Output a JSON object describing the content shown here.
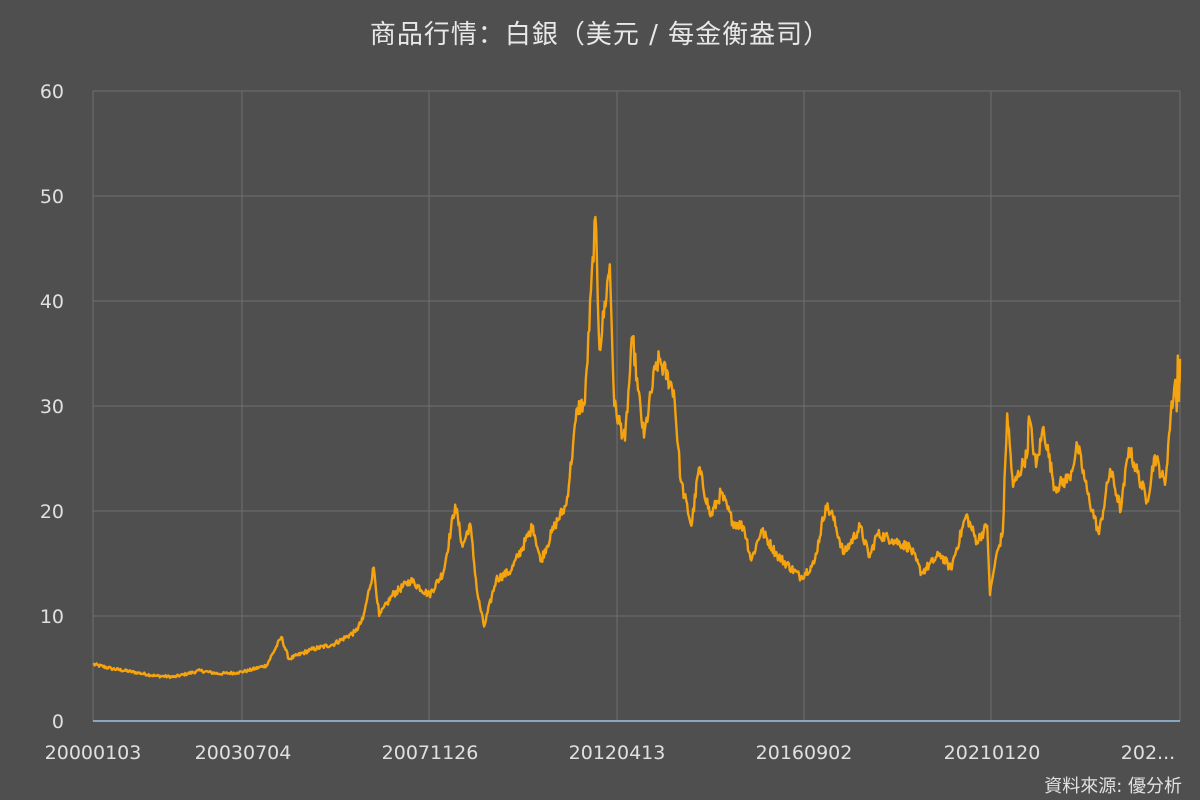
{
  "chart_data": {
    "type": "line",
    "title": "商品行情：白銀（美元 / 每金衡盎司）",
    "source": "資料來源: 優分析",
    "xlabel": "",
    "ylabel": "",
    "ylim": [
      0,
      60
    ],
    "yticks": [
      "0",
      "10",
      "20",
      "30",
      "40",
      "50",
      "60"
    ],
    "xtick_labels": [
      "20000103",
      "20030704",
      "20071126",
      "20120413",
      "20160902",
      "20210120",
      "202..."
    ],
    "grid": true,
    "legend": "none",
    "line_color": "#f5a30f",
    "axis_color": "#9cc3e6",
    "x_domain": [
      "2000-01-03",
      "2024-06-28"
    ],
    "points": [
      [
        "2000-01-03",
        5.4
      ],
      [
        "2000-06-01",
        5.0
      ],
      [
        "2001-01-02",
        4.6
      ],
      [
        "2001-06-01",
        4.3
      ],
      [
        "2001-11-01",
        4.2
      ],
      [
        "2002-06-01",
        4.8
      ],
      [
        "2002-11-01",
        4.5
      ],
      [
        "2003-04-01",
        4.6
      ],
      [
        "2003-07-04",
        4.8
      ],
      [
        "2003-12-01",
        5.3
      ],
      [
        "2004-04-01",
        8.0
      ],
      [
        "2004-06-01",
        5.9
      ],
      [
        "2004-12-01",
        6.8
      ],
      [
        "2005-06-01",
        7.3
      ],
      [
        "2005-12-01",
        8.5
      ],
      [
        "2006-02-01",
        9.7
      ],
      [
        "2006-05-01",
        14.6
      ],
      [
        "2006-06-15",
        10.0
      ],
      [
        "2006-10-01",
        12.0
      ],
      [
        "2007-03-01",
        13.4
      ],
      [
        "2007-08-01",
        12.0
      ],
      [
        "2007-11-26",
        14.2
      ],
      [
        "2008-03-01",
        20.6
      ],
      [
        "2008-05-01",
        16.6
      ],
      [
        "2008-07-01",
        18.8
      ],
      [
        "2008-09-01",
        12.0
      ],
      [
        "2008-10-25",
        9.0
      ],
      [
        "2009-02-01",
        13.5
      ],
      [
        "2009-06-01",
        14.3
      ],
      [
        "2009-12-01",
        18.6
      ],
      [
        "2010-02-01",
        15.2
      ],
      [
        "2010-06-01",
        18.7
      ],
      [
        "2010-09-01",
        20.6
      ],
      [
        "2010-12-01",
        29.8
      ],
      [
        "2011-02-01",
        30.3
      ],
      [
        "2011-04-28",
        48.0
      ],
      [
        "2011-06-01",
        35.4
      ],
      [
        "2011-08-25",
        43.5
      ],
      [
        "2011-10-01",
        30.0
      ],
      [
        "2011-12-28",
        26.7
      ],
      [
        "2012-02-28",
        36.6
      ],
      [
        "2012-04-13",
        31.5
      ],
      [
        "2012-06-01",
        27.0
      ],
      [
        "2012-09-01",
        33.5
      ],
      [
        "2012-10-05",
        34.4
      ],
      [
        "2013-02-01",
        31.5
      ],
      [
        "2013-04-01",
        22.8
      ],
      [
        "2013-06-27",
        18.6
      ],
      [
        "2013-08-27",
        24.1
      ],
      [
        "2013-12-01",
        19.5
      ],
      [
        "2014-02-24",
        21.7
      ],
      [
        "2014-06-01",
        19.0
      ],
      [
        "2014-09-01",
        18.5
      ],
      [
        "2014-11-01",
        15.3
      ],
      [
        "2015-01-22",
        18.2
      ],
      [
        "2015-06-01",
        15.8
      ],
      [
        "2015-12-14",
        13.7
      ],
      [
        "2016-04-01",
        15.0
      ],
      [
        "2016-07-05",
        20.5
      ],
      [
        "2016-09-02",
        19.5
      ],
      [
        "2016-12-01",
        15.9
      ],
      [
        "2017-04-14",
        18.5
      ],
      [
        "2017-07-01",
        15.6
      ],
      [
        "2017-09-01",
        17.8
      ],
      [
        "2018-01-01",
        17.3
      ],
      [
        "2018-06-01",
        16.5
      ],
      [
        "2018-09-01",
        14.1
      ],
      [
        "2019-02-01",
        15.9
      ],
      [
        "2019-05-01",
        14.5
      ],
      [
        "2019-09-04",
        19.6
      ],
      [
        "2019-12-01",
        17.1
      ],
      [
        "2020-02-24",
        18.6
      ],
      [
        "2020-03-18",
        12.0
      ],
      [
        "2020-05-01",
        15.3
      ],
      [
        "2020-07-01",
        18.0
      ],
      [
        "2020-08-06",
        29.3
      ],
      [
        "2020-09-24",
        22.3
      ],
      [
        "2021-01-20",
        25.5
      ],
      [
        "2021-02-01",
        29.0
      ],
      [
        "2021-04-01",
        24.2
      ],
      [
        "2021-06-01",
        28.0
      ],
      [
        "2021-09-01",
        22.2
      ],
      [
        "2022-01-01",
        23.2
      ],
      [
        "2022-03-08",
        26.2
      ],
      [
        "2022-06-01",
        21.6
      ],
      [
        "2022-09-01",
        17.8
      ],
      [
        "2022-12-01",
        24.0
      ],
      [
        "2023-02-28",
        20.1
      ],
      [
        "2023-05-04",
        26.0
      ],
      [
        "2023-10-01",
        21.0
      ],
      [
        "2023-12-04",
        25.3
      ],
      [
        "2024-02-26",
        22.5
      ],
      [
        "2024-04-12",
        29.0
      ],
      [
        "2024-05-20",
        32.5
      ],
      [
        "2024-06-01",
        29.5
      ],
      [
        "2024-06-10",
        34.8
      ],
      [
        "2024-06-20",
        30.5
      ],
      [
        "2024-06-28",
        34.5
      ]
    ]
  }
}
